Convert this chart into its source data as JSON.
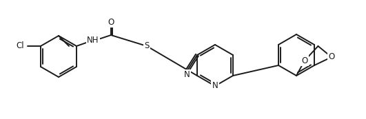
{
  "bg_color": "#ffffff",
  "line_color": "#1a1a1a",
  "line_width": 1.4,
  "font_size": 8.5,
  "figsize": [
    5.31,
    1.73
  ],
  "dpi": 100,
  "xlim": [
    0,
    531
  ],
  "ylim": [
    0,
    173
  ]
}
